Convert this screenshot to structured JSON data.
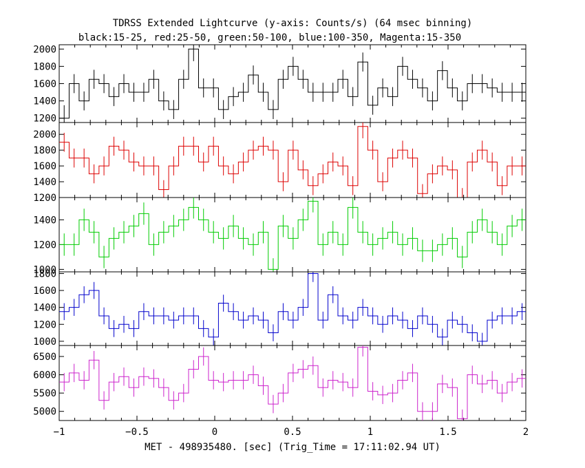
{
  "chart_data": {
    "type": "line",
    "title": "TDRSS Extended Lightcurve (y-axis: Counts/s) (64 msec binning)",
    "subtitle": "black:15-25, red:25-50, green:50-100, blue:100-350, Magenta:15-350",
    "xlabel": "MET - 498935480. [sec] (Trig_Time = 17:11:02.94 UT)",
    "xlim": [
      -1,
      2
    ],
    "xticks": [
      -1,
      -0.5,
      0,
      0.5,
      1,
      1.5,
      2
    ],
    "xtick_labels": [
      "−1",
      "−0.5",
      "0",
      "0.5",
      "1",
      "1.5",
      "2"
    ],
    "bin_width": 0.064,
    "x_start": -1.0,
    "series": [
      {
        "color": "#000000",
        "ylim": [
          1150,
          2050
        ],
        "yticks": [
          1200,
          1400,
          1600,
          1800,
          2000
        ],
        "values": [
          1200,
          1600,
          1400,
          1650,
          1600,
          1450,
          1600,
          1500,
          1500,
          1650,
          1400,
          1300,
          1650,
          2000,
          1550,
          1550,
          1300,
          1450,
          1500,
          1700,
          1500,
          1300,
          1650,
          1800,
          1650,
          1500,
          1500,
          1500,
          1650,
          1450,
          1850,
          1350,
          1550,
          1450,
          1800,
          1650,
          1550,
          1400,
          1750,
          1550,
          1400,
          1600,
          1600,
          1550,
          1500,
          1500,
          1500
        ],
        "errors": [
          150,
          110,
          110,
          110,
          110,
          110,
          110,
          110,
          110,
          110,
          110,
          110,
          110,
          140,
          110,
          110,
          110,
          110,
          110,
          110,
          110,
          110,
          110,
          110,
          110,
          110,
          110,
          110,
          110,
          110,
          110,
          110,
          110,
          110,
          110,
          110,
          110,
          110,
          110,
          110,
          110,
          110,
          110,
          110,
          110,
          110,
          110
        ]
      },
      {
        "color": "#dd0000",
        "ylim": [
          1200,
          2150
        ],
        "yticks": [
          1200,
          1400,
          1600,
          1800,
          2000
        ],
        "values": [
          1900,
          1700,
          1700,
          1500,
          1600,
          1850,
          1800,
          1650,
          1600,
          1600,
          1300,
          1600,
          1850,
          1850,
          1650,
          1850,
          1600,
          1500,
          1650,
          1800,
          1850,
          1800,
          1400,
          1800,
          1550,
          1350,
          1500,
          1650,
          1600,
          1350,
          2100,
          1800,
          1400,
          1700,
          1800,
          1700,
          1250,
          1500,
          1600,
          1550,
          1200,
          1650,
          1800,
          1650,
          1350,
          1600,
          1600
        ],
        "errors": [
          120,
          120,
          120,
          120,
          120,
          120,
          120,
          120,
          120,
          120,
          120,
          120,
          120,
          120,
          120,
          120,
          120,
          120,
          120,
          120,
          120,
          120,
          120,
          120,
          120,
          120,
          120,
          120,
          120,
          120,
          150,
          120,
          120,
          120,
          120,
          120,
          120,
          120,
          120,
          120,
          120,
          120,
          120,
          120,
          120,
          120,
          120
        ]
      },
      {
        "color": "#00cc00",
        "ylim": [
          980,
          1580
        ],
        "yticks": [
          1000,
          1200,
          1400
        ],
        "values": [
          1200,
          1200,
          1400,
          1300,
          1100,
          1250,
          1300,
          1350,
          1450,
          1200,
          1300,
          1350,
          1400,
          1500,
          1400,
          1300,
          1250,
          1350,
          1250,
          1200,
          1300,
          1000,
          1350,
          1250,
          1400,
          1550,
          1200,
          1300,
          1200,
          1500,
          1300,
          1200,
          1250,
          1300,
          1200,
          1250,
          1150,
          1150,
          1200,
          1250,
          1100,
          1300,
          1400,
          1300,
          1200,
          1350,
          1400
        ],
        "errors": [
          90,
          90,
          90,
          90,
          90,
          90,
          90,
          90,
          90,
          90,
          90,
          90,
          90,
          90,
          90,
          90,
          90,
          90,
          90,
          90,
          90,
          90,
          90,
          90,
          90,
          90,
          90,
          90,
          90,
          90,
          90,
          90,
          90,
          90,
          90,
          90,
          90,
          90,
          90,
          90,
          90,
          90,
          90,
          90,
          90,
          90,
          90
        ]
      },
      {
        "color": "#0000cc",
        "ylim": [
          950,
          1820
        ],
        "yticks": [
          1000,
          1200,
          1400,
          1600,
          1800
        ],
        "values": [
          1350,
          1400,
          1550,
          1600,
          1300,
          1150,
          1200,
          1150,
          1350,
          1300,
          1300,
          1250,
          1300,
          1300,
          1150,
          1050,
          1450,
          1350,
          1250,
          1300,
          1250,
          1100,
          1350,
          1250,
          1400,
          1800,
          1250,
          1550,
          1300,
          1250,
          1400,
          1300,
          1200,
          1300,
          1250,
          1150,
          1300,
          1200,
          1050,
          1250,
          1200,
          1100,
          1000,
          1250,
          1300,
          1300,
          1350
        ],
        "errors": [
          100,
          100,
          100,
          100,
          100,
          100,
          100,
          100,
          100,
          100,
          100,
          100,
          100,
          100,
          100,
          100,
          100,
          100,
          100,
          100,
          100,
          100,
          100,
          100,
          100,
          100,
          100,
          100,
          100,
          100,
          100,
          100,
          100,
          100,
          100,
          100,
          100,
          100,
          100,
          100,
          100,
          100,
          100,
          100,
          100,
          100,
          100
        ]
      },
      {
        "color": "#cc22cc",
        "ylim": [
          4750,
          6800
        ],
        "yticks": [
          5000,
          5500,
          6000,
          6500
        ],
        "values": [
          5800,
          6050,
          5850,
          6400,
          5300,
          5800,
          5950,
          5650,
          5950,
          5900,
          5650,
          5300,
          5500,
          6150,
          6500,
          5850,
          5800,
          5850,
          5850,
          6000,
          5700,
          5200,
          5500,
          6050,
          6150,
          6250,
          5650,
          5850,
          5800,
          5650,
          6750,
          5550,
          5450,
          5500,
          5850,
          6050,
          5000,
          5000,
          5750,
          5650,
          4800,
          6000,
          5750,
          5850,
          5500,
          5800,
          5900
        ],
        "errors": [
          250,
          250,
          250,
          250,
          250,
          250,
          250,
          250,
          250,
          250,
          250,
          250,
          250,
          250,
          250,
          250,
          250,
          250,
          250,
          250,
          250,
          250,
          250,
          250,
          250,
          250,
          250,
          250,
          250,
          250,
          250,
          250,
          250,
          250,
          250,
          250,
          250,
          250,
          250,
          250,
          250,
          250,
          250,
          250,
          250,
          250,
          250
        ]
      }
    ]
  }
}
